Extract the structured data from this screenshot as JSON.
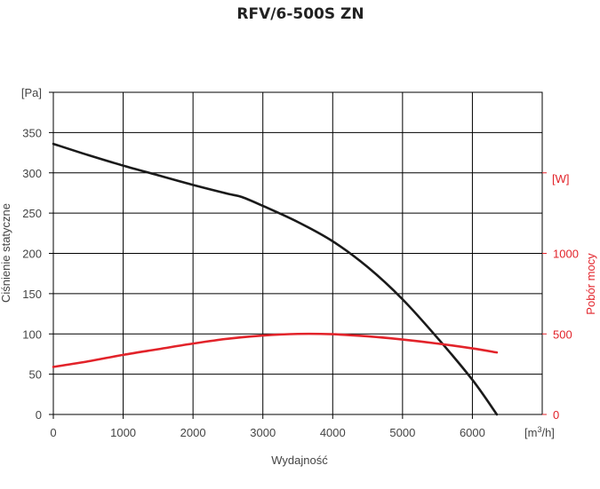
{
  "chart_data": {
    "type": "line",
    "title": "RFV/6-500S ZN",
    "xlabel": "Wydajność",
    "x_unit_prefix": "[m",
    "x_unit_sup": "3",
    "x_unit_suffix": "/h]",
    "xlim": [
      0,
      7000
    ],
    "x_ticks": [
      "0",
      "1000",
      "2000",
      "3000",
      "4000",
      "5000",
      "6000"
    ],
    "ylabel_left": "Ciśnienie statyczne",
    "y_left_unit": "[Pa]",
    "ylim_left": [
      0,
      400
    ],
    "y_left_ticks": [
      "0",
      "50",
      "100",
      "150",
      "200",
      "250",
      "300",
      "350"
    ],
    "ylabel_right": "Pobór mocy",
    "y_right_unit": "[W]",
    "ylim_right": [
      0,
      2000
    ],
    "y_right_ticks": [
      "0",
      "500",
      "1000"
    ],
    "grid": true,
    "colors": {
      "pressure": "#1a1a1a",
      "power": "#e2232a",
      "right_axis": "#e2232a"
    },
    "series": [
      {
        "axis": "left",
        "x": [
          0,
          500,
          1000,
          1500,
          2000,
          2500,
          2700,
          3000,
          3500,
          4000,
          4500,
          5000,
          5500,
          6000,
          6350
        ],
        "values": [
          336,
          322,
          309,
          297,
          285,
          274,
          270,
          259,
          239,
          215,
          183,
          143,
          95,
          43,
          0
        ]
      },
      {
        "axis": "right",
        "x": [
          0,
          500,
          1000,
          1500,
          2000,
          2500,
          3000,
          3500,
          4000,
          4500,
          5000,
          5500,
          6000,
          6350
        ],
        "values": [
          295,
          330,
          370,
          405,
          440,
          470,
          490,
          500,
          498,
          485,
          465,
          440,
          410,
          385
        ]
      }
    ]
  }
}
